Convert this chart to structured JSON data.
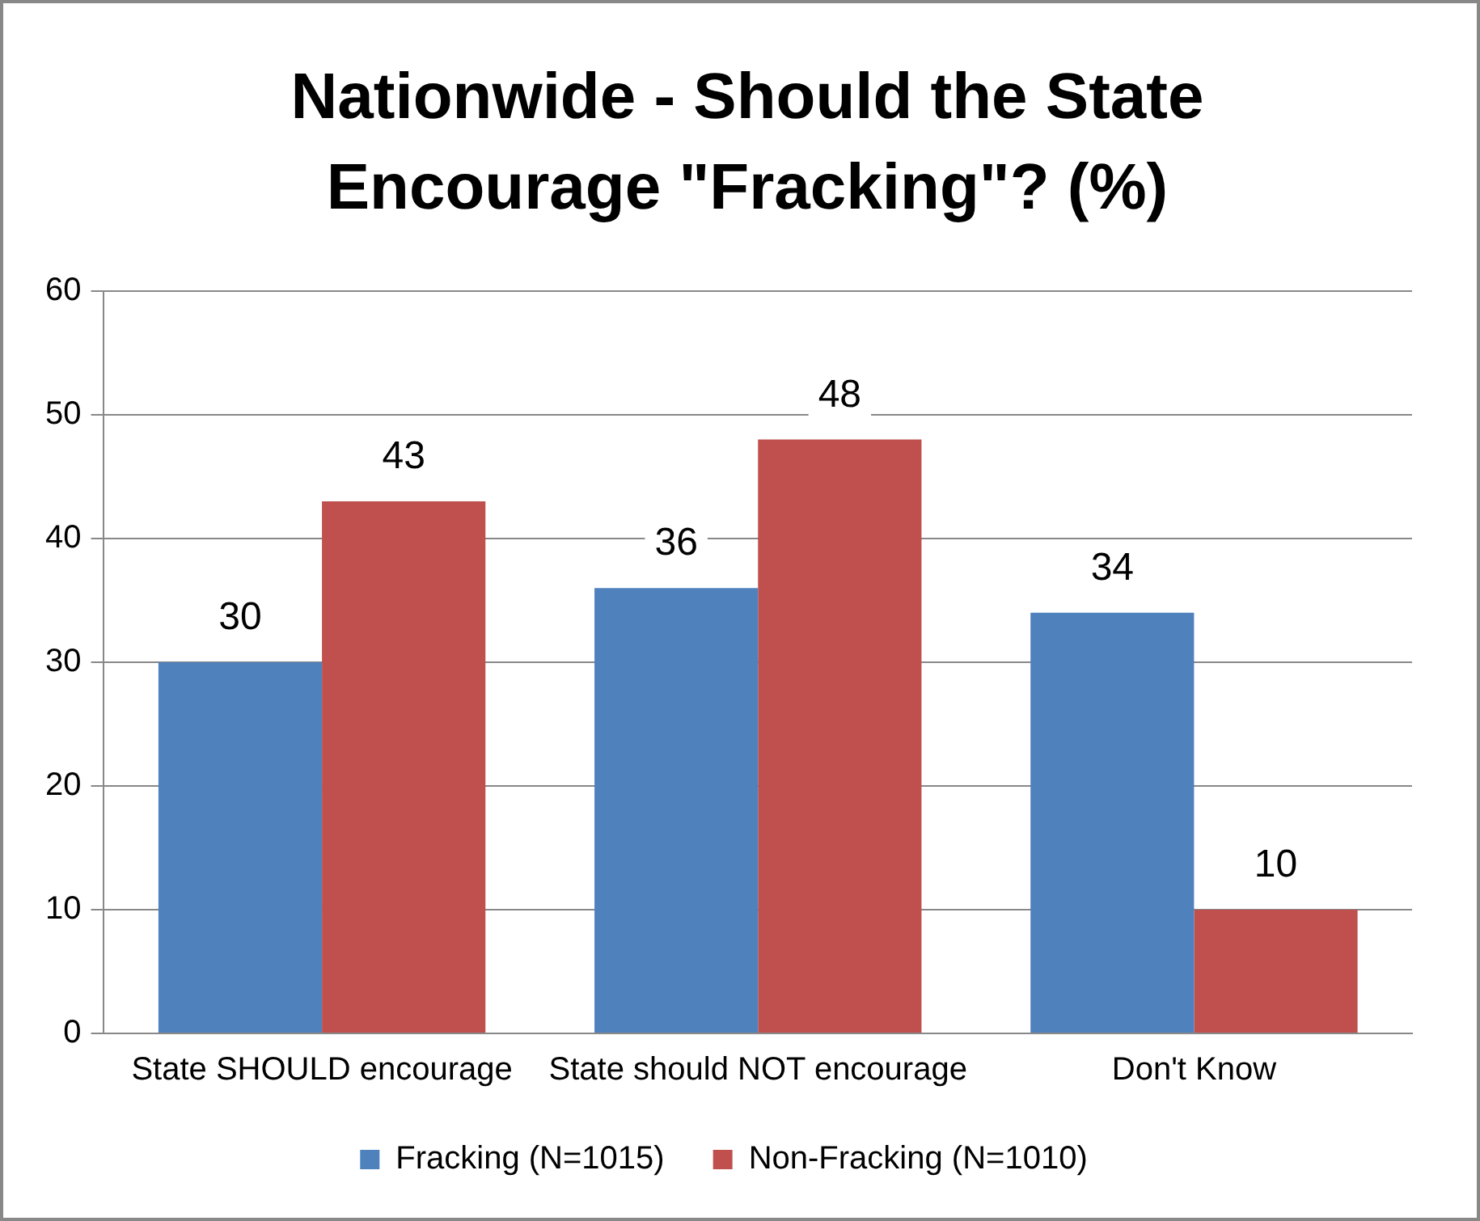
{
  "chart_data": {
    "type": "bar",
    "title": "Nationwide - Should the State Encourage \"Fracking\"? (%)",
    "categories": [
      "State SHOULD encourage",
      "State should NOT encourage",
      "Don't Know"
    ],
    "series": [
      {
        "name": "Fracking (N=1015)",
        "color": "#4f81bd",
        "values": [
          30,
          36,
          34
        ]
      },
      {
        "name": "Non-Fracking (N=1010)",
        "color": "#c0504d",
        "values": [
          43,
          48,
          10
        ]
      }
    ],
    "ylim": [
      0,
      60
    ],
    "yticks": [
      0,
      10,
      20,
      30,
      40,
      50,
      60
    ],
    "grid": "y",
    "legend": "bottom",
    "data_labels": true
  }
}
